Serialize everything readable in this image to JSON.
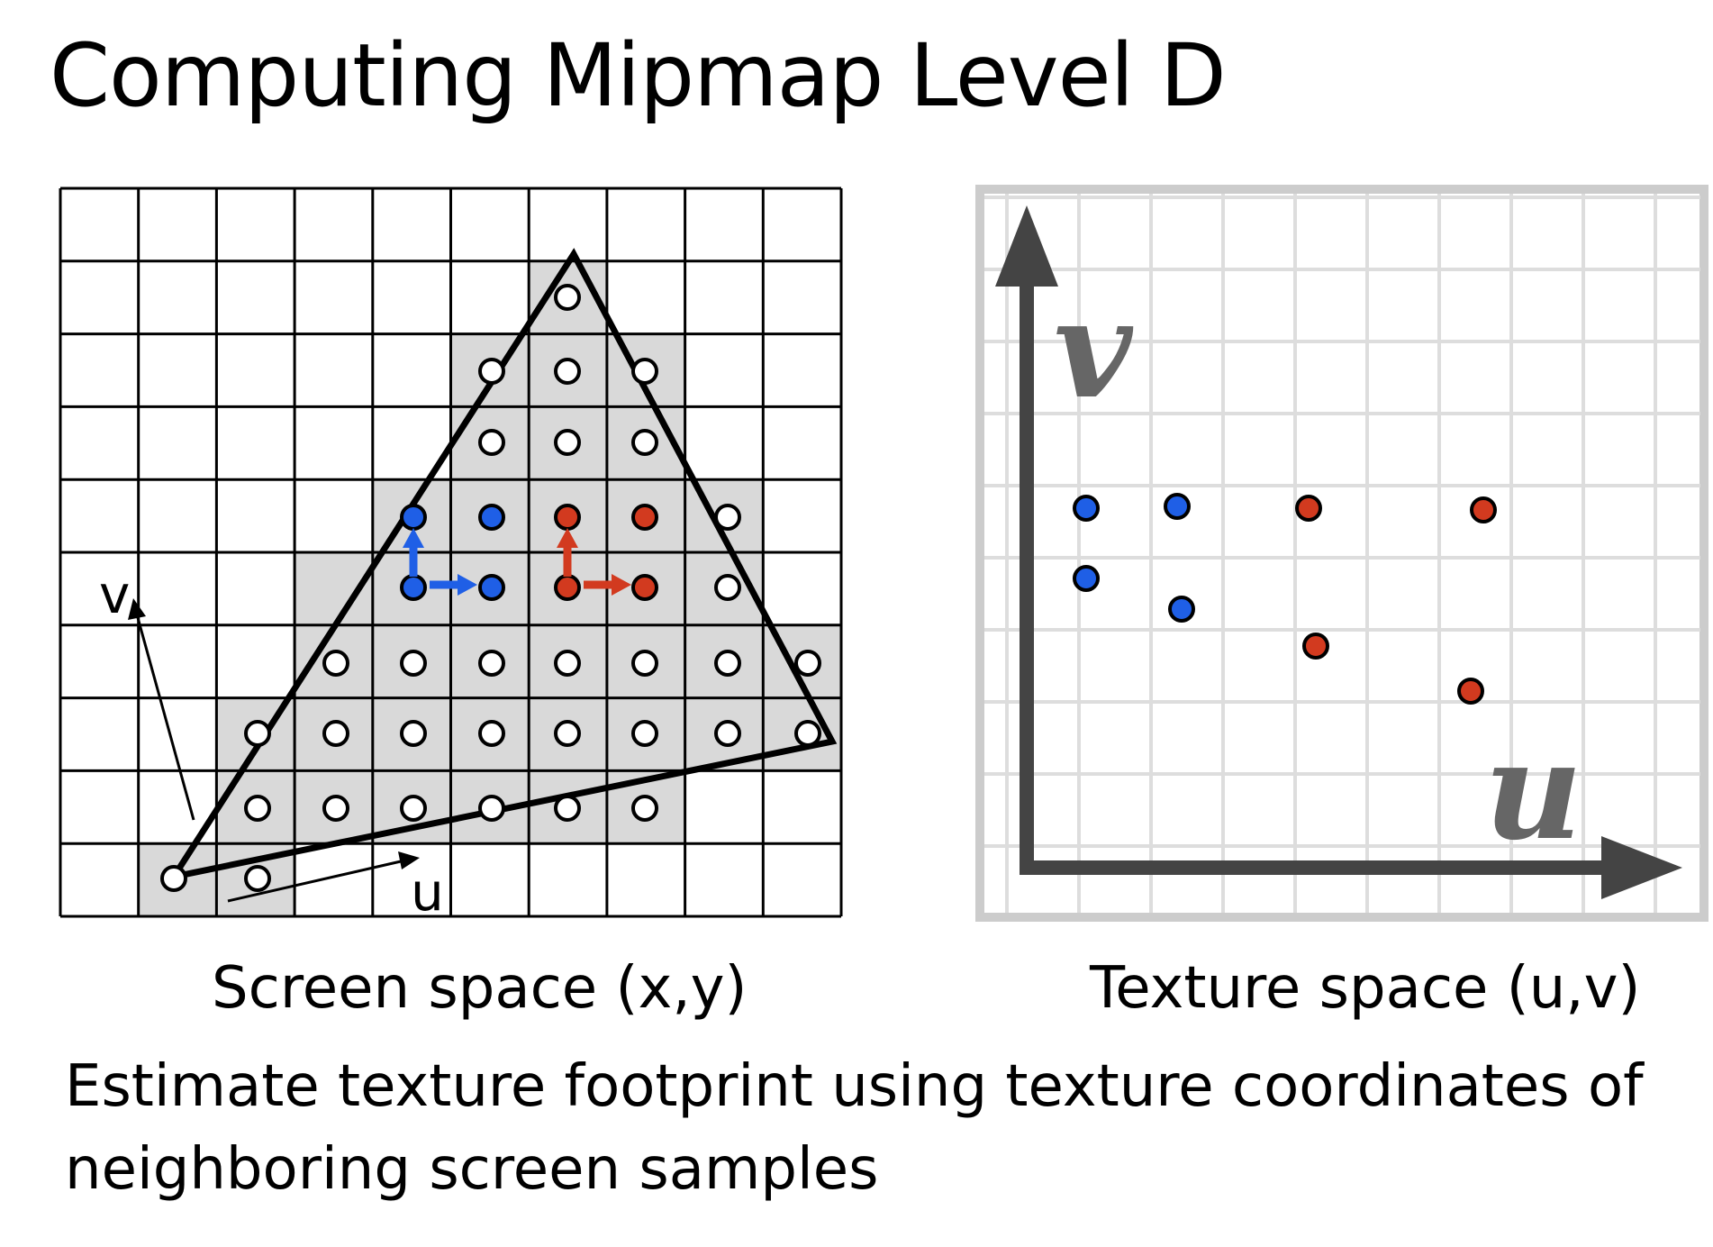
{
  "title": "Computing Mipmap Level D",
  "screen_caption": "Screen space (x,y)",
  "texture_caption": "Texture space (u,v)",
  "note": "Estimate texture footprint using texture coordinates of neighboring screen samples",
  "screen_axis_u": "u",
  "screen_axis_v": "v",
  "texture_axis_u": "u",
  "texture_axis_v": "v",
  "colors": {
    "blue": "#1f5fe6",
    "red": "#d23a1f",
    "gray_fill": "#d9d9d9",
    "texture_axis": "#444444",
    "texture_grid": "#dddddd",
    "texture_frame": "#cccccc"
  }
}
